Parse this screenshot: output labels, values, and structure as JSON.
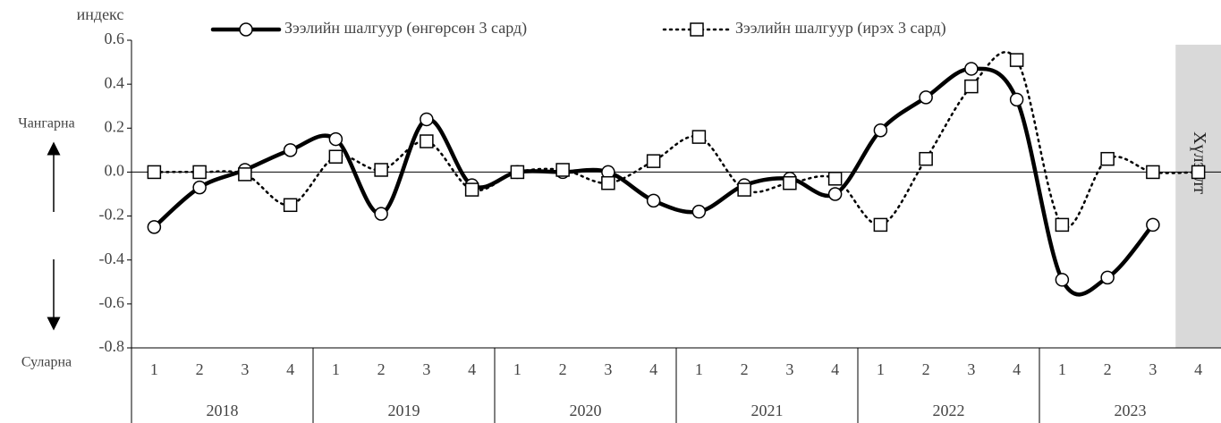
{
  "chart_data": {
    "type": "line",
    "y_axis_label": "индекс",
    "up_label": "Чангарна",
    "down_label": "Суларна",
    "forecast_label": "Хүлээлт",
    "categories": [
      "1",
      "2",
      "3",
      "4",
      "1",
      "2",
      "3",
      "4",
      "1",
      "2",
      "3",
      "4",
      "1",
      "2",
      "3",
      "4",
      "1",
      "2",
      "3",
      "4",
      "1",
      "2",
      "3",
      "4"
    ],
    "groups": [
      "2018",
      "2019",
      "2020",
      "2021",
      "2022",
      "2023"
    ],
    "series": [
      {
        "name": "Зээлийн шалгуур (өнгөрсөн 3 сард)",
        "color": "#000000",
        "style": "solid",
        "marker": "circle",
        "values": [
          -0.25,
          -0.07,
          0.01,
          0.1,
          0.15,
          -0.19,
          0.24,
          -0.06,
          0.0,
          0.0,
          0.0,
          -0.13,
          -0.18,
          -0.06,
          -0.03,
          -0.1,
          0.19,
          0.34,
          0.47,
          0.33,
          -0.49,
          -0.48,
          -0.24,
          null
        ]
      },
      {
        "name": "Зээлийн шалгуур (ирэх 3 сард)",
        "color": "#000000",
        "style": "dotted",
        "marker": "square",
        "values": [
          0.0,
          0.0,
          -0.01,
          -0.15,
          0.07,
          0.01,
          0.14,
          -0.08,
          0.0,
          0.01,
          -0.05,
          0.05,
          0.16,
          -0.08,
          -0.05,
          -0.03,
          -0.24,
          0.06,
          0.39,
          0.51,
          -0.24,
          0.06,
          0.0,
          0.0
        ]
      }
    ],
    "ylim": [
      -0.8,
      0.6
    ],
    "yticks": [
      -0.8,
      -0.6,
      -0.4,
      -0.2,
      {
        "value": 0,
        "label": "0.0"
      },
      0.2,
      0.4,
      0.6
    ],
    "grid": false
  }
}
